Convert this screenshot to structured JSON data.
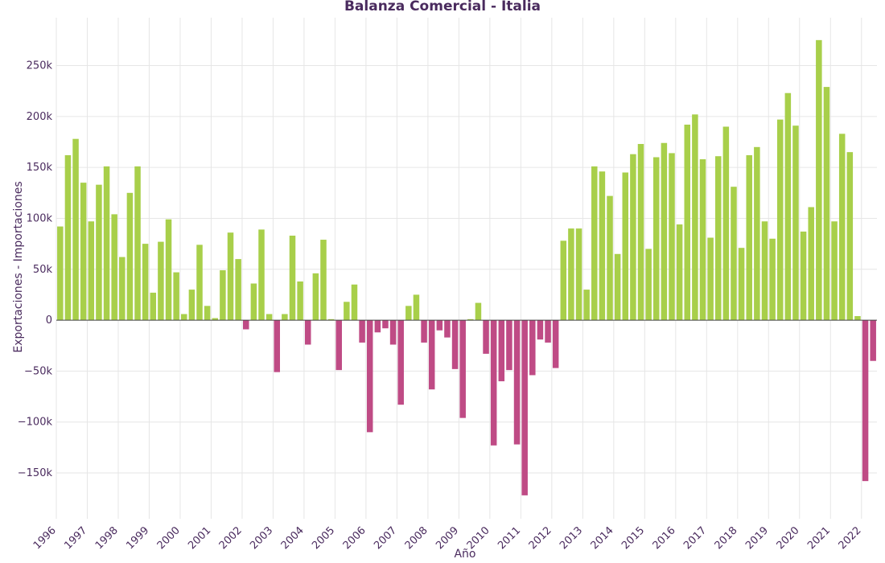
{
  "chart_data": {
    "type": "bar",
    "title": "Balanza Comercial - Italia",
    "xlabel": "Año",
    "ylabel": "Exportaciones - Importaciones",
    "x_ticks": [
      "1996",
      "1997",
      "1998",
      "1999",
      "2000",
      "2001",
      "2002",
      "2003",
      "2004",
      "2005",
      "2006",
      "2007",
      "2008",
      "2009",
      "2010",
      "2011",
      "2012",
      "2013",
      "2014",
      "2015",
      "2016",
      "2017",
      "2018",
      "2019",
      "2020",
      "2021",
      "2022"
    ],
    "y_ticks": [
      -150000,
      -100000,
      -50000,
      0,
      50000,
      100000,
      150000,
      200000,
      250000
    ],
    "y_tick_labels": [
      "−150k",
      "−100k",
      "−50k",
      "0",
      "50k",
      "100k",
      "150k",
      "200k",
      "250k"
    ],
    "ylim": [
      -195000,
      297000
    ],
    "grid": true,
    "colors": {
      "positive": "#a8cf4a",
      "negative": "#bf4b85",
      "text": "#4a2b5e"
    },
    "periods": [
      "1996-Q1",
      "1996-Q2",
      "1996-Q3",
      "1996-Q4",
      "1997-Q1",
      "1997-Q2",
      "1997-Q3",
      "1997-Q4",
      "1998-Q1",
      "1998-Q2",
      "1998-Q3",
      "1998-Q4",
      "1999-Q1",
      "1999-Q2",
      "1999-Q3",
      "1999-Q4",
      "2000-Q1",
      "2000-Q2",
      "2000-Q3",
      "2000-Q4",
      "2001-Q1",
      "2001-Q2",
      "2001-Q3",
      "2001-Q4",
      "2002-Q1",
      "2002-Q2",
      "2002-Q3",
      "2002-Q4",
      "2003-Q1",
      "2003-Q2",
      "2003-Q3",
      "2003-Q4",
      "2004-Q1",
      "2004-Q2",
      "2004-Q3",
      "2004-Q4",
      "2005-Q1",
      "2005-Q2",
      "2005-Q3",
      "2005-Q4",
      "2006-Q1",
      "2006-Q2",
      "2006-Q3",
      "2006-Q4",
      "2007-Q1",
      "2007-Q2",
      "2007-Q3",
      "2007-Q4",
      "2008-Q1",
      "2008-Q2",
      "2008-Q3",
      "2008-Q4",
      "2009-Q1",
      "2009-Q2",
      "2009-Q3",
      "2009-Q4",
      "2010-Q1",
      "2010-Q2",
      "2010-Q3",
      "2010-Q4",
      "2011-Q1",
      "2011-Q2",
      "2011-Q3",
      "2011-Q4",
      "2012-Q1",
      "2012-Q2",
      "2012-Q3",
      "2012-Q4",
      "2013-Q1",
      "2013-Q2",
      "2013-Q3",
      "2013-Q4",
      "2014-Q1",
      "2014-Q2",
      "2014-Q3",
      "2014-Q4",
      "2015-Q1",
      "2015-Q2",
      "2015-Q3",
      "2015-Q4",
      "2016-Q1",
      "2016-Q2",
      "2016-Q3",
      "2016-Q4",
      "2017-Q1",
      "2017-Q2",
      "2017-Q3",
      "2017-Q4",
      "2018-Q1",
      "2018-Q2",
      "2018-Q3",
      "2018-Q4",
      "2019-Q1",
      "2019-Q2",
      "2019-Q3",
      "2019-Q4",
      "2020-Q1",
      "2020-Q2",
      "2020-Q3",
      "2020-Q4",
      "2021-Q1",
      "2021-Q2",
      "2021-Q3",
      "2021-Q4",
      "2022-Q1",
      "2022-Q2"
    ],
    "values": [
      92000,
      162000,
      178000,
      135000,
      97000,
      133000,
      151000,
      104000,
      62000,
      125000,
      151000,
      75000,
      27000,
      77000,
      99000,
      47000,
      6000,
      30000,
      74000,
      14000,
      2000,
      49000,
      86000,
      60000,
      -9000,
      36000,
      89000,
      6000,
      -51000,
      6000,
      83000,
      38000,
      -24000,
      46000,
      79000,
      1000,
      -49000,
      18000,
      35000,
      -22000,
      -110000,
      -12000,
      -8000,
      -24000,
      -83000,
      14000,
      25000,
      -22000,
      -68000,
      -10000,
      -17000,
      -48000,
      -96000,
      1000,
      17000,
      -33000,
      -123000,
      -60000,
      -49000,
      -122000,
      -172000,
      -54000,
      -19000,
      -22000,
      -47000,
      78000,
      90000,
      90000,
      30000,
      151000,
      146000,
      122000,
      65000,
      145000,
      163000,
      173000,
      70000,
      160000,
      174000,
      164000,
      94000,
      192000,
      202000,
      158000,
      81000,
      161000,
      190000,
      131000,
      71000,
      162000,
      170000,
      97000,
      80000,
      197000,
      223000,
      191000,
      87000,
      111000,
      275000,
      229000,
      97000,
      183000,
      165000,
      4000,
      -158000,
      -40000
    ]
  }
}
